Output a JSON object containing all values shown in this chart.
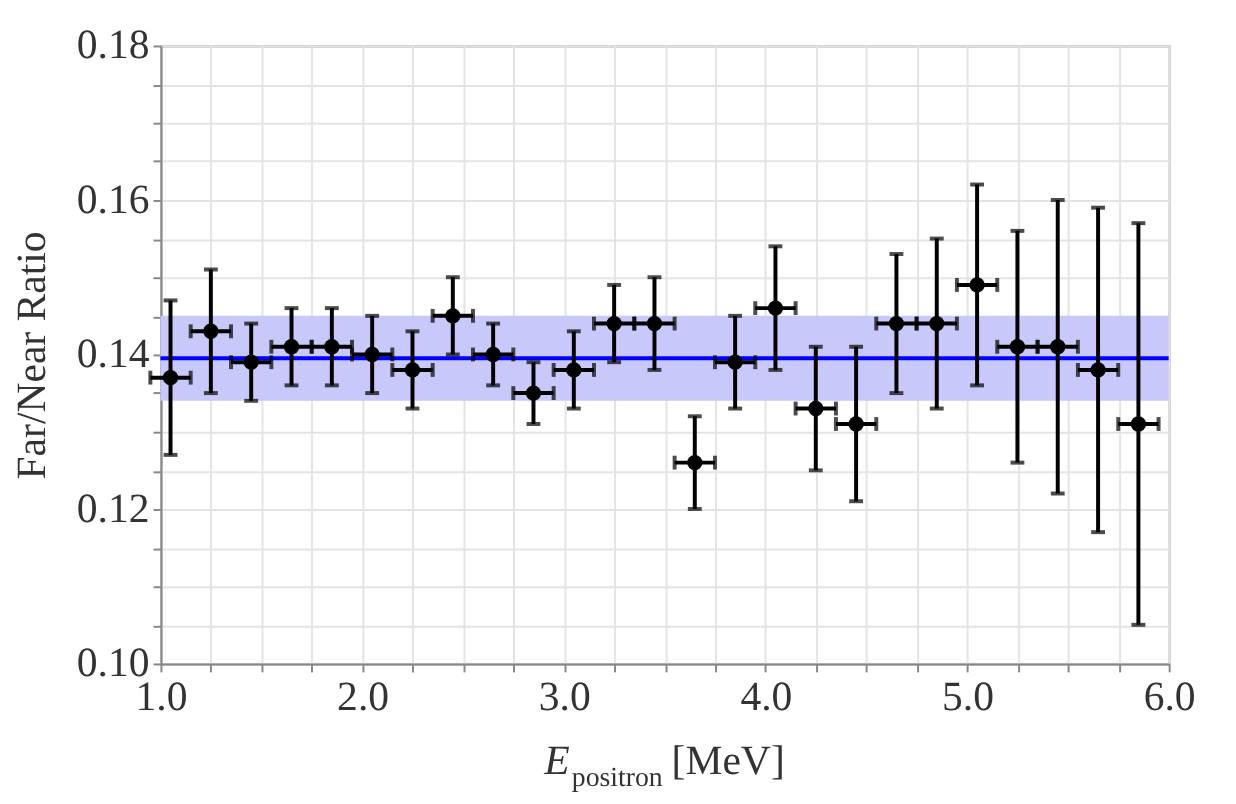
{
  "chart_data": {
    "type": "scatter",
    "xlabel": "E$_{positron}$ [MeV]",
    "ylabel": "Far/Near Ratio",
    "x": [
      1.05,
      1.25,
      1.45,
      1.65,
      1.85,
      2.05,
      2.25,
      2.45,
      2.65,
      2.85,
      3.05,
      3.25,
      3.45,
      3.65,
      3.85,
      4.05,
      4.25,
      4.45,
      4.65,
      4.85,
      5.05,
      5.25,
      5.45,
      5.65,
      5.85
    ],
    "series": [
      {
        "color": "#000000",
        "values": [
          0.137,
          0.143,
          0.139,
          0.141,
          0.141,
          0.14,
          0.138,
          0.145,
          0.14,
          0.135,
          0.138,
          0.144,
          0.144,
          0.126,
          0.139,
          0.146,
          0.133,
          0.131,
          0.144,
          0.144,
          0.149,
          0.141,
          0.141,
          0.138,
          0.131
        ],
        "errors": [
          [
            0.127,
            0.147
          ],
          [
            0.135,
            0.151
          ],
          [
            0.134,
            0.144
          ],
          [
            0.136,
            0.146
          ],
          [
            0.136,
            0.146
          ],
          [
            0.135,
            0.145
          ],
          [
            0.133,
            0.143
          ],
          [
            0.14,
            0.15
          ],
          [
            0.136,
            0.144
          ],
          [
            0.131,
            0.139
          ],
          [
            0.133,
            0.143
          ],
          [
            0.139,
            0.149
          ],
          [
            0.138,
            0.15
          ],
          [
            0.12,
            0.132
          ],
          [
            0.133,
            0.145
          ],
          [
            0.138,
            0.154
          ],
          [
            0.125,
            0.141
          ],
          [
            0.121,
            0.141
          ],
          [
            0.135,
            0.153
          ],
          [
            0.133,
            0.155
          ],
          [
            0.136,
            0.162
          ],
          [
            0.126,
            0.156
          ],
          [
            0.122,
            0.16
          ],
          [
            0.117,
            0.159
          ],
          [
            0.105,
            0.157
          ]
        ],
        "xerrors": [
          0.1,
          0.1,
          0.1,
          0.1,
          0.1,
          0.1,
          0.1,
          0.1,
          0.1,
          0.1,
          0.1,
          0.1,
          0.1,
          0.1,
          0.1,
          0.1,
          0.1,
          0.1,
          0.1,
          0.1,
          0.1,
          0.1,
          0.1,
          0.1,
          0.1
        ]
      }
    ],
    "ref_lines": [
      {
        "axis": "y",
        "value": 0.1395,
        "color": "#0000ff"
      }
    ],
    "bands": [
      {
        "axis": "y",
        "from": 0.134,
        "to": 0.145,
        "color": "#c8c8fa"
      }
    ],
    "marker": "circle",
    "grid": true,
    "xlim": [
      1.0,
      6.0
    ],
    "ylim": [
      0.1,
      0.18
    ],
    "xticks": [
      {
        "value": 1.0,
        "label": "1.0"
      },
      {
        "value": 1.25,
        "label": null
      },
      {
        "value": 1.5,
        "label": null
      },
      {
        "value": 1.75,
        "label": null
      },
      {
        "value": 2.0,
        "label": "2.0"
      },
      {
        "value": 2.25,
        "label": null
      },
      {
        "value": 2.5,
        "label": null
      },
      {
        "value": 2.75,
        "label": null
      },
      {
        "value": 3.0,
        "label": "3.0"
      },
      {
        "value": 3.25,
        "label": null
      },
      {
        "value": 3.5,
        "label": null
      },
      {
        "value": 3.75,
        "label": null
      },
      {
        "value": 4.0,
        "label": "4.0"
      },
      {
        "value": 4.25,
        "label": null
      },
      {
        "value": 4.5,
        "label": null
      },
      {
        "value": 4.75,
        "label": null
      },
      {
        "value": 5.0,
        "label": "5.0"
      },
      {
        "value": 5.25,
        "label": null
      },
      {
        "value": 5.5,
        "label": null
      },
      {
        "value": 5.75,
        "label": null
      },
      {
        "value": 6.0,
        "label": "6.0"
      }
    ],
    "yticks": [
      {
        "value": 0.1,
        "label": "0.10"
      },
      {
        "value": 0.105,
        "label": null
      },
      {
        "value": 0.11,
        "label": null
      },
      {
        "value": 0.115,
        "label": null
      },
      {
        "value": 0.12,
        "label": "0.12"
      },
      {
        "value": 0.125,
        "label": null
      },
      {
        "value": 0.13,
        "label": null
      },
      {
        "value": 0.135,
        "label": null
      },
      {
        "value": 0.14,
        "label": "0.14"
      },
      {
        "value": 0.145,
        "label": null
      },
      {
        "value": 0.15,
        "label": null
      },
      {
        "value": 0.155,
        "label": null
      },
      {
        "value": 0.16,
        "label": "0.16"
      },
      {
        "value": 0.165,
        "label": null
      },
      {
        "value": 0.17,
        "label": null
      },
      {
        "value": 0.175,
        "label": null
      },
      {
        "value": 0.18,
        "label": "0.18"
      }
    ]
  }
}
